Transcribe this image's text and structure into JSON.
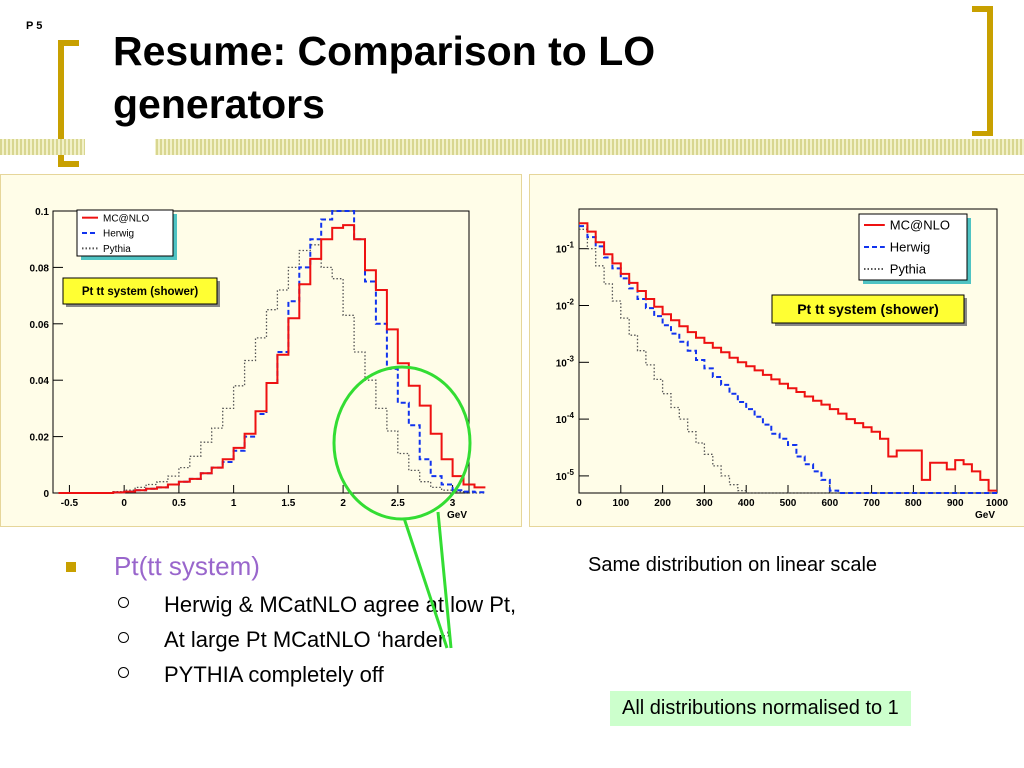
{
  "slide": {
    "page_number": "P 5",
    "title": "Resume: Comparison to LO generators",
    "caption_right": "Same distribution on linear scale",
    "note": "All distributions normalised to 1",
    "bracket_color": "#c8a000",
    "highlight_color": "#33dd33"
  },
  "bullets": {
    "main": "Pt(tt system)",
    "sub": [
      "Herwig & MCatNLO agree at low Pt,",
      "At large Pt MCatNLO ‘harder’",
      "PYTHIA completely off"
    ]
  },
  "chart_data": [
    {
      "type": "line",
      "step": true,
      "title": "Pt tt system (shower)",
      "xlabel": "GeV",
      "ylabel": "",
      "xlim": [
        -0.65,
        3.15
      ],
      "ylim": [
        0,
        0.1
      ],
      "xticks": [
        -0.5,
        0,
        0.5,
        1,
        1.5,
        2,
        2.5,
        3
      ],
      "xtick_labels": [
        "-0.5",
        "0",
        "0.5",
        "1",
        "1.5",
        "2",
        "2.5",
        "3"
      ],
      "yticks": [
        0,
        0.02,
        0.04,
        0.06,
        0.08,
        0.1
      ],
      "ytick_labels": [
        "0",
        "0.02",
        "0.04",
        "0.06",
        "0.08",
        "0.1"
      ],
      "bin_edges_start": -0.6,
      "bin_width": 0.1,
      "legend_position": "top-left",
      "series": [
        {
          "name": "MC@NLO",
          "color": "#ee1111",
          "dash": "solid",
          "values": [
            0,
            0,
            0,
            0,
            0,
            0.0002,
            0.0005,
            0.001,
            0.0015,
            0.002,
            0.003,
            0.004,
            0.005,
            0.007,
            0.009,
            0.012,
            0.016,
            0.021,
            0.029,
            0.039,
            0.049,
            0.062,
            0.074,
            0.083,
            0.09,
            0.094,
            0.095,
            0.09,
            0.079,
            0.072,
            0.058,
            0.046,
            0.038,
            0.031,
            0.021,
            0.012,
            0.006,
            0.003,
            0.002
          ]
        },
        {
          "name": "Herwig",
          "color": "#1133ee",
          "dash": "dashed",
          "values": [
            0,
            0,
            0,
            0,
            0,
            0.0002,
            0.0005,
            0.001,
            0.0015,
            0.002,
            0.003,
            0.004,
            0.005,
            0.007,
            0.009,
            0.011,
            0.015,
            0.02,
            0.028,
            0.039,
            0.05,
            0.068,
            0.08,
            0.09,
            0.097,
            0.1,
            0.1,
            0.09,
            0.075,
            0.06,
            0.044,
            0.032,
            0.024,
            0.012,
            0.006,
            0.003,
            0.001,
            0.0005,
            0.0003
          ]
        },
        {
          "name": "Pythia",
          "color": "#555555",
          "dash": "dotted",
          "values": [
            0,
            0,
            0,
            0,
            0,
            0.0005,
            0.001,
            0.002,
            0.003,
            0.004,
            0.006,
            0.009,
            0.013,
            0.018,
            0.023,
            0.03,
            0.038,
            0.047,
            0.055,
            0.065,
            0.072,
            0.08,
            0.086,
            0.088,
            0.08,
            0.076,
            0.063,
            0.05,
            0.04,
            0.03,
            0.022,
            0.014,
            0.008,
            0.004,
            0.002,
            0.001,
            0.0005,
            0,
            0
          ]
        }
      ]
    },
    {
      "type": "line",
      "step": true,
      "yscale": "log",
      "title": "Pt tt system (shower)",
      "xlabel": "GeV",
      "ylabel": "",
      "xlim": [
        0,
        1000
      ],
      "ylim": [
        5e-06,
        0.5
      ],
      "xticks": [
        0,
        100,
        200,
        300,
        400,
        500,
        600,
        700,
        800,
        900,
        1000
      ],
      "xtick_labels": [
        "0",
        "100",
        "200",
        "300",
        "400",
        "500",
        "600",
        "700",
        "800",
        "900",
        "1000"
      ],
      "yticks": [
        1e-05,
        0.0001,
        0.001,
        0.01,
        0.1
      ],
      "ytick_labels": [
        "10-5",
        "10-4",
        "10-3",
        "10-2",
        "10-1"
      ],
      "bin_width": 20,
      "legend_position": "top-right",
      "series": [
        {
          "name": "MC@NLO",
          "color": "#ee1111",
          "dash": "solid",
          "values": [
            0.28,
            0.2,
            0.13,
            0.08,
            0.055,
            0.036,
            0.025,
            0.018,
            0.013,
            0.0095,
            0.007,
            0.0055,
            0.0043,
            0.0034,
            0.0027,
            0.0022,
            0.0018,
            0.0015,
            0.0012,
            0.001,
            0.00085,
            0.00072,
            0.0006,
            0.0005,
            0.00042,
            0.00035,
            0.0003,
            0.00025,
            0.00021,
            0.00018,
            0.00015,
            0.000125,
            0.0001,
            8.5e-05,
            7.2e-05,
            6e-05,
            4.5e-05,
            2.2e-05,
            2.8e-05,
            2.8e-05,
            2.8e-05,
            8.5e-06,
            1.7e-05,
            1.7e-05,
            1.3e-05,
            1.9e-05,
            1.6e-05,
            1.2e-05,
            8.5e-06,
            5.5e-06
          ]
        },
        {
          "name": "Herwig",
          "color": "#1133ee",
          "dash": "dashed",
          "values": [
            0.25,
            0.16,
            0.11,
            0.07,
            0.045,
            0.03,
            0.02,
            0.013,
            0.009,
            0.0065,
            0.0045,
            0.0032,
            0.0023,
            0.0016,
            0.0011,
            0.00078,
            0.00055,
            0.0004,
            0.00028,
            0.0002,
            0.00015,
            0.00011,
            8e-05,
            5.5e-05,
            4.5e-05,
            3.5e-05,
            2.2e-05,
            1.6e-05,
            1.2e-05,
            8.5e-06,
            5.5e-06,
            5e-06,
            5e-06,
            5e-06,
            5e-06,
            5e-06,
            5e-06,
            5e-06,
            5e-06,
            5e-06,
            5e-06,
            5e-06,
            5e-06,
            5e-06,
            5e-06,
            5e-06,
            5e-06,
            5e-06,
            5e-06,
            5e-06
          ]
        },
        {
          "name": "Pythia",
          "color": "#555555",
          "dash": "dotted",
          "values": [
            0.22,
            0.1,
            0.05,
            0.024,
            0.012,
            0.006,
            0.003,
            0.0016,
            0.0009,
            0.0005,
            0.00028,
            0.00016,
            0.0001,
            6e-05,
            3.8e-05,
            2.4e-05,
            1.5e-05,
            1e-05,
            7e-06,
            5.5e-06,
            5e-06,
            5e-06,
            5e-06,
            5e-06,
            5e-06,
            5e-06,
            5e-06,
            5e-06,
            5e-06,
            5e-06,
            5e-06,
            5e-06,
            5e-06,
            5e-06,
            5e-06,
            5e-06,
            5e-06,
            5e-06,
            5e-06,
            5e-06,
            5e-06,
            5e-06,
            5e-06,
            5e-06,
            5e-06,
            5e-06,
            5e-06,
            5e-06,
            5e-06,
            5e-06
          ]
        }
      ]
    }
  ]
}
